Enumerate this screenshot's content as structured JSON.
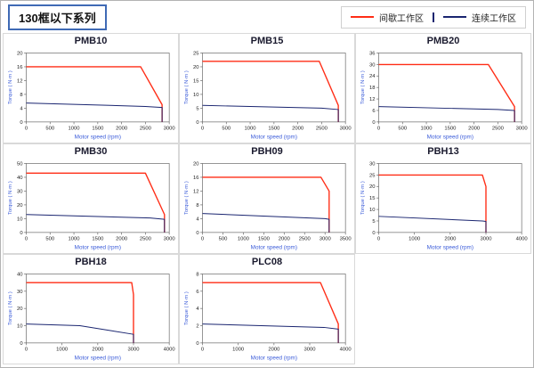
{
  "header": {
    "title": "130框以下系列",
    "legend": [
      {
        "name": "intermittent",
        "label": "间歇工作区",
        "color": "#ff2d16"
      },
      {
        "name": "continuous",
        "label": "连续工作区",
        "color": "#1a2570"
      }
    ]
  },
  "chart_data": [
    {
      "type": "line",
      "title": "PMB10",
      "xlabel": "Motor speed (rpm)",
      "ylabel": "Torque ( N·m )",
      "xlim": [
        0,
        3000
      ],
      "ylim": [
        0,
        20
      ],
      "xticks": [
        0,
        500,
        1000,
        1500,
        2000,
        2500,
        3000
      ],
      "yticks": [
        0,
        4,
        8,
        12,
        16,
        20
      ],
      "series": [
        {
          "name": "间歇工作区",
          "color": "#ff2d16",
          "points": [
            [
              0,
              16
            ],
            [
              2400,
              16
            ],
            [
              2850,
              5
            ],
            [
              2850,
              0
            ]
          ]
        },
        {
          "name": "连续工作区",
          "color": "#1a2570",
          "points": [
            [
              0,
              5.5
            ],
            [
              2500,
              4.5
            ],
            [
              2850,
              4.2
            ],
            [
              2850,
              0
            ]
          ]
        }
      ]
    },
    {
      "type": "line",
      "title": "PMB15",
      "xlabel": "Motor speed (rpm)",
      "ylabel": "Torque ( N·m )",
      "xlim": [
        0,
        3000
      ],
      "ylim": [
        0,
        25
      ],
      "xticks": [
        0,
        500,
        1000,
        1500,
        2000,
        2500,
        3000
      ],
      "yticks": [
        0,
        5,
        10,
        15,
        20,
        25
      ],
      "series": [
        {
          "name": "间歇工作区",
          "color": "#ff2d16",
          "points": [
            [
              0,
              22
            ],
            [
              2450,
              22
            ],
            [
              2850,
              6
            ],
            [
              2850,
              0
            ]
          ]
        },
        {
          "name": "连续工作区",
          "color": "#1a2570",
          "points": [
            [
              0,
              6
            ],
            [
              2500,
              5
            ],
            [
              2850,
              4.5
            ],
            [
              2850,
              0
            ]
          ]
        }
      ]
    },
    {
      "type": "line",
      "title": "PMB20",
      "xlabel": "Motor speed (rpm)",
      "ylabel": "Torque ( N·m )",
      "xlim": [
        0,
        3000
      ],
      "ylim": [
        0,
        36
      ],
      "xticks": [
        0,
        500,
        1000,
        1500,
        2000,
        2500,
        3000
      ],
      "yticks": [
        0,
        6,
        12,
        18,
        24,
        30,
        36
      ],
      "series": [
        {
          "name": "间歇工作区",
          "color": "#ff2d16",
          "points": [
            [
              0,
              30
            ],
            [
              2300,
              30
            ],
            [
              2850,
              8
            ],
            [
              2850,
              0
            ]
          ]
        },
        {
          "name": "连续工作区",
          "color": "#1a2570",
          "points": [
            [
              0,
              8
            ],
            [
              2500,
              6.5
            ],
            [
              2850,
              6
            ],
            [
              2850,
              0
            ]
          ]
        }
      ]
    },
    {
      "type": "line",
      "title": "PMB30",
      "xlabel": "Motor speed (rpm)",
      "ylabel": "Torque ( N·m )",
      "xlim": [
        0,
        3000
      ],
      "ylim": [
        0,
        50
      ],
      "xticks": [
        0,
        500,
        1000,
        1500,
        2000,
        2500,
        3000
      ],
      "yticks": [
        0,
        10,
        20,
        30,
        40,
        50
      ],
      "series": [
        {
          "name": "间歇工作区",
          "color": "#ff2d16",
          "points": [
            [
              0,
              43
            ],
            [
              2500,
              43
            ],
            [
              2900,
              13
            ],
            [
              2900,
              0
            ]
          ]
        },
        {
          "name": "连续工作区",
          "color": "#1a2570",
          "points": [
            [
              0,
              13
            ],
            [
              2600,
              10.5
            ],
            [
              2900,
              9.5
            ],
            [
              2900,
              0
            ]
          ]
        }
      ]
    },
    {
      "type": "line",
      "title": "PBH09",
      "xlabel": "Motor speed (rpm)",
      "ylabel": "Torque ( N·m )",
      "xlim": [
        0,
        3500
      ],
      "ylim": [
        0,
        20
      ],
      "xticks": [
        0,
        500,
        1000,
        1500,
        2000,
        2500,
        3000,
        3500
      ],
      "yticks": [
        0,
        4,
        8,
        12,
        16,
        20
      ],
      "series": [
        {
          "name": "间歇工作区",
          "color": "#ff2d16",
          "points": [
            [
              0,
              16
            ],
            [
              2900,
              16
            ],
            [
              3100,
              12
            ],
            [
              3100,
              0
            ]
          ]
        },
        {
          "name": "连续工作区",
          "color": "#1a2570",
          "points": [
            [
              0,
              5.5
            ],
            [
              3000,
              4
            ],
            [
              3100,
              3.8
            ],
            [
              3100,
              0
            ]
          ]
        }
      ]
    },
    {
      "type": "line",
      "title": "PBH13",
      "xlabel": "Motor speed (rpm)",
      "ylabel": "Torque ( N·m )",
      "xlim": [
        0,
        4000
      ],
      "ylim": [
        0,
        30
      ],
      "xticks": [
        0,
        1000,
        2000,
        3000,
        4000
      ],
      "yticks": [
        0,
        5,
        10,
        15,
        20,
        25,
        30
      ],
      "series": [
        {
          "name": "间歇工作区",
          "color": "#ff2d16",
          "points": [
            [
              0,
              25
            ],
            [
              2900,
              25
            ],
            [
              3000,
              20
            ],
            [
              3000,
              0
            ]
          ]
        },
        {
          "name": "连续工作区",
          "color": "#1a2570",
          "points": [
            [
              0,
              7
            ],
            [
              2900,
              5
            ],
            [
              3000,
              4.8
            ],
            [
              3000,
              0
            ]
          ]
        }
      ]
    },
    {
      "type": "line",
      "title": "PBH18",
      "xlabel": "Motor speed (rpm)",
      "ylabel": "Torque ( N·m )",
      "xlim": [
        0,
        4000
      ],
      "ylim": [
        0,
        40
      ],
      "xticks": [
        0,
        1000,
        2000,
        3000,
        4000
      ],
      "yticks": [
        0,
        10,
        20,
        30,
        40
      ],
      "series": [
        {
          "name": "间歇工作区",
          "color": "#ff2d16",
          "points": [
            [
              0,
              35
            ],
            [
              2950,
              35
            ],
            [
              3000,
              28
            ],
            [
              3000,
              0
            ]
          ]
        },
        {
          "name": "连续工作区",
          "color": "#1a2570",
          "points": [
            [
              0,
              11
            ],
            [
              1500,
              10
            ],
            [
              3000,
              5
            ],
            [
              3000,
              0
            ]
          ]
        }
      ]
    },
    {
      "type": "line",
      "title": "PLC08",
      "xlabel": "Motor speed (rpm)",
      "ylabel": "Torque ( N·m )",
      "xlim": [
        0,
        4000
      ],
      "ylim": [
        0,
        8
      ],
      "xticks": [
        0,
        1000,
        2000,
        3000,
        4000
      ],
      "yticks": [
        0,
        2,
        4,
        6,
        8
      ],
      "series": [
        {
          "name": "间歇工作区",
          "color": "#ff2d16",
          "points": [
            [
              0,
              7
            ],
            [
              3300,
              7
            ],
            [
              3800,
              2.2
            ],
            [
              3800,
              0
            ]
          ]
        },
        {
          "name": "连续工作区",
          "color": "#1a2570",
          "points": [
            [
              0,
              2.2
            ],
            [
              3400,
              1.8
            ],
            [
              3800,
              1.6
            ],
            [
              3800,
              0
            ]
          ]
        }
      ]
    }
  ]
}
